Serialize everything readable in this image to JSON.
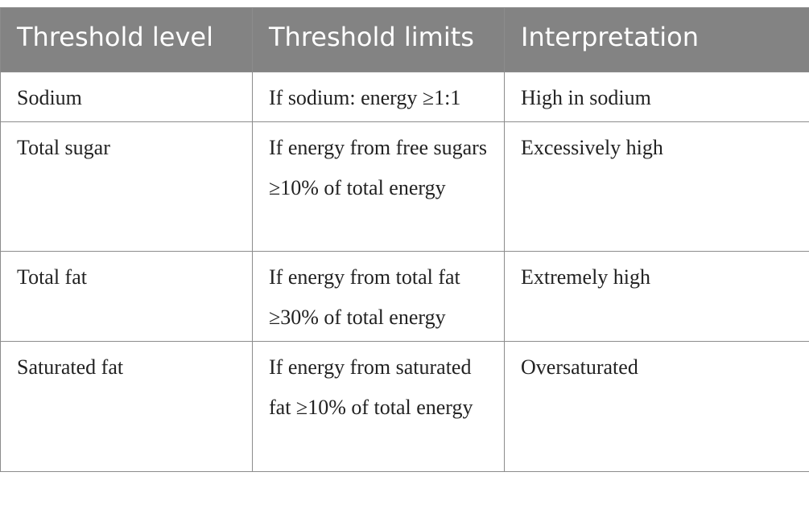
{
  "table": {
    "headers": [
      "Threshold level",
      "Threshold limits",
      "Interpretation"
    ],
    "rows": [
      [
        "Sodium",
        "If sodium: energy ≥1:1",
        "High in sodium"
      ],
      [
        "Total sugar",
        "If energy from free sugars ≥10% of total energy",
        "Excessively high"
      ],
      [
        "Total fat",
        "If energy from total fat ≥30% of total energy",
        "Extremely high"
      ],
      [
        "Saturated fat",
        "If energy from saturated fat ≥10% of total energy",
        "Oversaturated"
      ]
    ]
  },
  "colors": {
    "header_bg": "#838383",
    "header_text": "#ffffff",
    "border": "#8c8c8c",
    "body_text": "#222222"
  }
}
